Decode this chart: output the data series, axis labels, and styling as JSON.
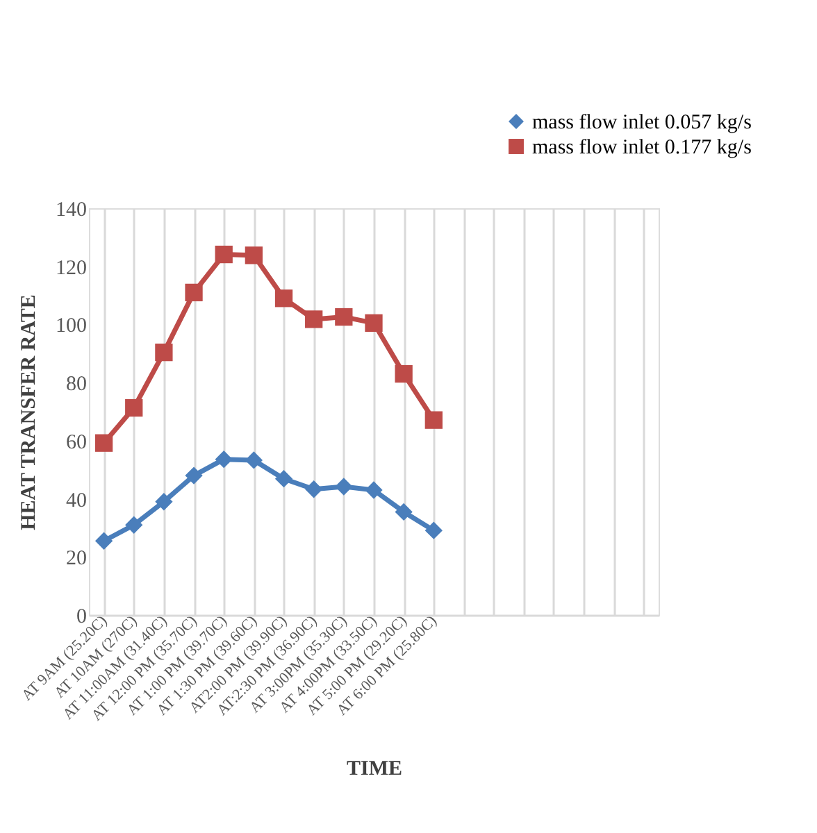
{
  "chart_data": {
    "type": "line",
    "xlabel": "TIME",
    "ylabel": "HEAT TRANSFER RATE",
    "categories": [
      "AT 9AM  (25.20C)",
      "AT 10AM (270C)",
      "AT 11:00AM (31.40C)",
      "AT 12:00 PM (35.70C)",
      "AT 1:00 PM (39.70C)",
      "AT 1:30 PM (39.60C)",
      "AT2:00 PM (39.90C)",
      "AT:2:30 PM (36.90C)",
      "AT 3:00PM (35.30C)",
      "AT 4:00PM (33.50C)",
      "AT 5:00 PM (29.20C)",
      "AT 6:00 PM (25.80C)",
      null,
      null,
      null,
      null,
      null,
      null,
      null
    ],
    "series": [
      {
        "name": "mass flow inlet 0.057 kg/s",
        "color": "#4a7ebb",
        "marker": "diamond",
        "values": [
          25.5,
          31,
          39,
          48,
          53.6,
          53.3,
          46.9,
          43.3,
          44.2,
          43,
          35.5,
          29.1,
          null,
          null,
          null,
          null,
          null,
          null,
          null
        ]
      },
      {
        "name": "mass flow inlet 0.177 kg/s",
        "color": "#be4b48",
        "marker": "square",
        "values": [
          59.2,
          71.3,
          90.4,
          111,
          124.1,
          123.8,
          109,
          101.8,
          102.6,
          100.5,
          83,
          67.1,
          null,
          null,
          null,
          null,
          null,
          null,
          null
        ]
      }
    ],
    "ylim": [
      0,
      140
    ],
    "yticks": [
      0,
      20,
      40,
      60,
      80,
      100,
      120,
      140
    ],
    "grid": "x",
    "legend": "top right",
    "line_style": "solid"
  }
}
